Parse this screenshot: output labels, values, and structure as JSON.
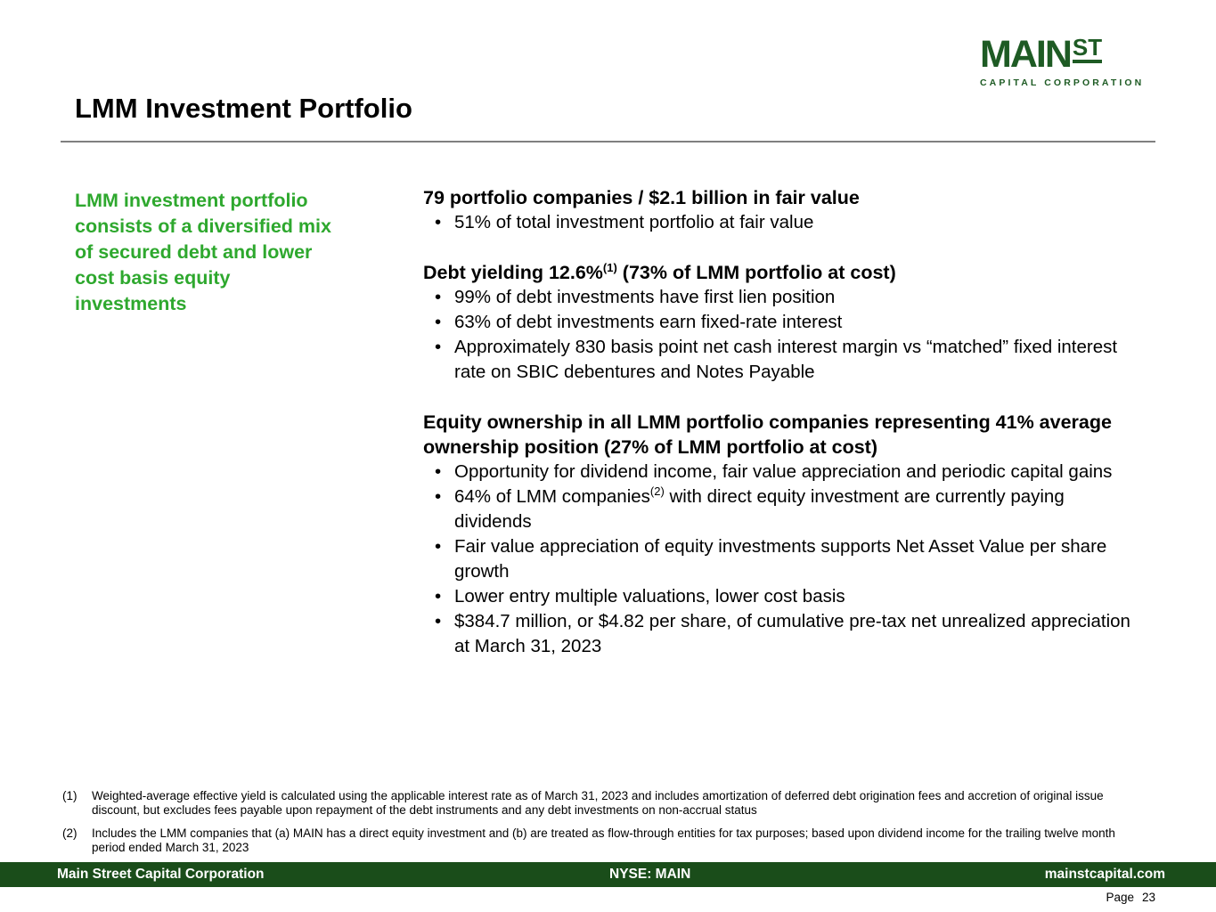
{
  "logo": {
    "word": "MAIN",
    "sup": "ST",
    "subtitle": "CAPITAL CORPORATION"
  },
  "page": {
    "title": "LMM Investment Portfolio"
  },
  "sidebar": {
    "statement": "LMM investment portfolio consists of a diversified mix of secured debt and lower cost basis equity investments"
  },
  "content": {
    "section1": {
      "heading": "79 portfolio companies / $2.1 billion in fair value",
      "bullets": [
        "51% of total investment portfolio at fair value"
      ]
    },
    "section2": {
      "heading_pre": "Debt yielding 12.6%",
      "heading_sup": "(1)",
      "heading_post": " (73% of LMM portfolio at cost)",
      "bullets": [
        "99% of debt investments have first lien position",
        "63% of debt investments earn fixed-rate interest",
        "Approximately 830 basis point net cash interest margin vs “matched” fixed interest rate on SBIC debentures and Notes Payable"
      ]
    },
    "section3": {
      "heading": "Equity ownership in all LMM portfolio companies representing 41% average ownership position (27% of LMM portfolio at cost)",
      "bullet1": "Opportunity for dividend income, fair value appreciation and periodic capital gains",
      "bullet2_pre": "64% of LMM companies",
      "bullet2_sup": "(2)",
      "bullet2_post": " with direct equity investment are currently paying dividends",
      "bullet3": "Fair value appreciation of equity investments supports Net Asset Value per share growth",
      "bullet4": "Lower entry multiple valuations, lower cost basis",
      "bullet5": "$384.7 million, or $4.82 per share, of cumulative pre-tax net unrealized appreciation at March 31, 2023"
    }
  },
  "footnotes": [
    {
      "num": "(1)",
      "text": "Weighted-average effective yield is calculated using the applicable interest rate as of March 31, 2023 and includes amortization of deferred debt origination fees and accretion of original issue discount, but excludes fees payable upon repayment of the debt instruments and any debt investments on non-accrual status"
    },
    {
      "num": "(2)",
      "text": "Includes the LMM companies that (a) MAIN has a direct equity investment and (b) are treated as flow-through entities for tax purposes; based upon dividend income for the trailing twelve month period ended March 31, 2023"
    }
  ],
  "footer": {
    "company": "Main Street Capital Corporation",
    "ticker": "NYSE: MAIN",
    "website": "mainstcapital.com",
    "page_label": "Page",
    "page_number": "23"
  },
  "ui": {
    "bullet_char": "•"
  },
  "colors": {
    "brand_green_dark": "#1E5B24",
    "footer_bar_green": "#1A4D1A",
    "accent_green": "#2EA82E",
    "rule_gray": "#7f7f7f"
  }
}
